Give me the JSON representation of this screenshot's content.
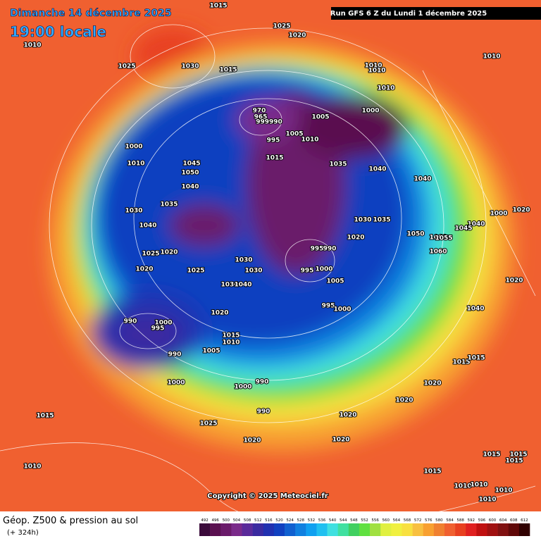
{
  "header": {
    "date": "Dimanche 14 décembre 2025",
    "time": "19:00 locale",
    "run": "Run GFS 6 Z du Lundi 1 décembre 2025"
  },
  "copyright": "Copyright © 2025 Meteociel.fr",
  "legend": {
    "title": "Géop. Z500 & pression au sol",
    "lead": "(+ 324h)",
    "ticks": [
      492,
      496,
      500,
      504,
      508,
      512,
      516,
      520,
      524,
      528,
      532,
      536,
      540,
      544,
      548,
      552,
      556,
      560,
      564,
      568,
      572,
      576,
      580,
      584,
      588,
      592,
      596,
      600,
      604,
      608,
      612
    ],
    "colors": [
      "#3a0a3a",
      "#5a1050",
      "#6a1a6a",
      "#7a2a8a",
      "#5a2a9a",
      "#3a2aa0",
      "#2030b0",
      "#1040c0",
      "#1060d0",
      "#1080e0",
      "#10a0f0",
      "#20c0f0",
      "#40e0e0",
      "#40e0a0",
      "#40d060",
      "#60e040",
      "#a0e040",
      "#e0f040",
      "#f0f040",
      "#f8e040",
      "#f8c040",
      "#f8a030",
      "#f08030",
      "#f06030",
      "#e84020",
      "#e02020",
      "#c01010",
      "#a01010",
      "#801010",
      "#600808",
      "#300000"
    ]
  },
  "pressure_labels": [
    1015,
    1025,
    1020,
    1010,
    1025,
    1030,
    1015,
    1010,
    1010,
    1010,
    1010,
    970,
    965,
    999990,
    1005,
    1000,
    1005,
    1010,
    995,
    1000,
    1015,
    1010,
    1045,
    1050,
    1035,
    1040,
    1040,
    1040,
    1035,
    1030,
    1000,
    1020,
    1040,
    1030,
    1035,
    1040,
    1045,
    1050,
    1060,
    1055,
    1020,
    995,
    990,
    1060,
    1025,
    1020,
    1030,
    1025,
    1020,
    1030,
    995,
    1000,
    1005,
    1030,
    1040,
    1020,
    995,
    1000,
    1040,
    1020,
    990,
    1000,
    995,
    1015,
    1010,
    1005,
    990,
    1015,
    1015,
    1000,
    990,
    1000,
    1020,
    1020,
    990,
    1020,
    1015,
    1025,
    1020,
    1020,
    1010,
    1015,
    1015,
    1015,
    1015,
    1010,
    1010,
    1010,
    1010
  ]
}
